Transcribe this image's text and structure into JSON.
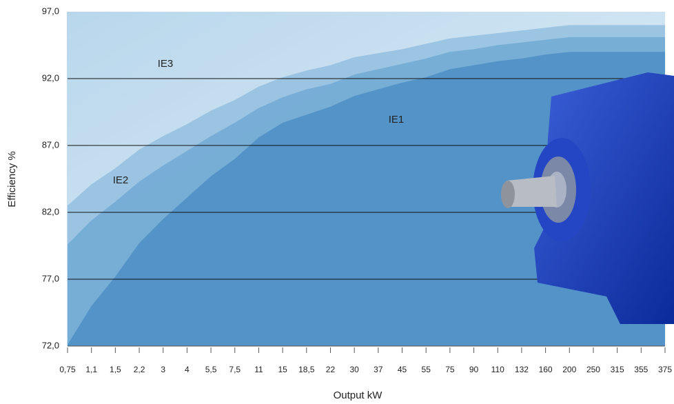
{
  "chart_data": {
    "type": "area",
    "x_label": "Output kW",
    "y_label": "Efficiency %",
    "categories": [
      "0,75",
      "1,1",
      "1,5",
      "2,2",
      "3",
      "4",
      "5,5",
      "7,5",
      "11",
      "15",
      "18,5",
      "22",
      "30",
      "37",
      "45",
      "55",
      "75",
      "90",
      "110",
      "132",
      "160",
      "200",
      "250",
      "315",
      "355",
      "375"
    ],
    "series": [
      {
        "name": "IE3",
        "color": "#93bfdf",
        "values": [
          82.5,
          84.1,
          85.3,
          86.7,
          87.7,
          88.6,
          89.6,
          90.4,
          91.4,
          92.1,
          92.6,
          93.0,
          93.6,
          93.9,
          94.2,
          94.6,
          95.0,
          95.2,
          95.4,
          95.6,
          95.8,
          96.0,
          96.0,
          96.0,
          96.0,
          96.0
        ]
      },
      {
        "name": "IE2",
        "color": "#71a9d3",
        "values": [
          79.6,
          81.4,
          82.8,
          84.3,
          85.5,
          86.6,
          87.7,
          88.7,
          89.8,
          90.6,
          91.2,
          91.6,
          92.3,
          92.7,
          93.1,
          93.5,
          94.0,
          94.2,
          94.5,
          94.7,
          94.9,
          95.1,
          95.1,
          95.1,
          95.1,
          95.1
        ]
      },
      {
        "name": "IE1",
        "color": "#4d8ec4",
        "values": [
          72.1,
          75.0,
          77.2,
          79.7,
          81.5,
          83.1,
          84.7,
          86.0,
          87.6,
          88.7,
          89.3,
          89.9,
          90.7,
          91.2,
          91.7,
          92.1,
          92.7,
          93.0,
          93.3,
          93.5,
          93.8,
          94.0,
          94.0,
          94.0,
          94.0,
          94.0
        ]
      }
    ],
    "ylim": [
      72,
      97
    ],
    "yticks": [
      {
        "value": 72,
        "label": "72,0"
      },
      {
        "value": 77,
        "label": "77,0"
      },
      {
        "value": 82,
        "label": "82,0"
      },
      {
        "value": 87,
        "label": "87,0"
      },
      {
        "value": 92,
        "label": "92,0"
      },
      {
        "value": 97,
        "label": "97,0"
      }
    ],
    "grid": true
  }
}
